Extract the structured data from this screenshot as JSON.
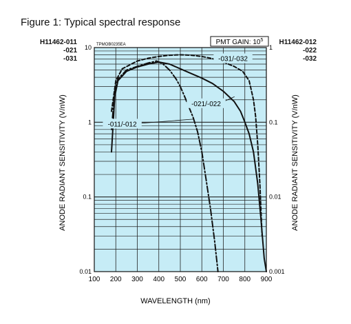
{
  "figure_title": "Figure 1: Typical spectral response",
  "models_left": [
    "H11462-011",
    "-021",
    "-031"
  ],
  "models_right": [
    "H11462-012",
    "-022",
    "-032"
  ],
  "drawing_code": "TPMOB0235EA",
  "gain_badge": {
    "text": "PMT GAIN: 10",
    "sup": "5"
  },
  "chart_data": {
    "type": "line",
    "xlabel": "WAVELENGTH (nm)",
    "ylabel": "ANODE RADIANT SENSITIVITY (V/nW)",
    "ylabel_right": "ANODE RADIANT SENSITIVITY (V/nW)",
    "x_ticks": [
      100,
      200,
      300,
      400,
      500,
      600,
      700,
      800,
      900
    ],
    "xlim": [
      100,
      900
    ],
    "y_scale": "log",
    "ylim": [
      0.01,
      10
    ],
    "y_ticks_left": [
      {
        "value": 0.01,
        "label": "0.01"
      },
      {
        "value": 0.1,
        "label": "0.1"
      },
      {
        "value": 1,
        "label": "1"
      },
      {
        "value": 10,
        "label": "10"
      }
    ],
    "y_ticks_right": [
      {
        "value": 0.01,
        "label": "0.001"
      },
      {
        "value": 0.1,
        "label": "0.01"
      },
      {
        "value": 1,
        "label": "0.1"
      },
      {
        "value": 10,
        "label": "1"
      }
    ],
    "grid": true,
    "background_color": "#c6ecf6",
    "series": [
      {
        "name": "-011/-012",
        "style": "dashdot",
        "x": [
          180,
          195,
          210,
          250,
          300,
          350,
          390,
          420,
          450,
          480,
          500,
          520,
          540,
          560,
          580,
          600,
          620,
          640,
          660,
          675
        ],
        "y": [
          0.8,
          2.6,
          3.8,
          5.0,
          5.6,
          6.2,
          6.6,
          6.0,
          5.0,
          3.8,
          3.0,
          2.2,
          1.6,
          1.15,
          0.75,
          0.4,
          0.17,
          0.07,
          0.025,
          0.01
        ]
      },
      {
        "name": "-021/-022",
        "style": "solid",
        "x": [
          180,
          195,
          210,
          250,
          300,
          350,
          400,
          450,
          500,
          550,
          600,
          650,
          700,
          750,
          780,
          800,
          820,
          840,
          860,
          875,
          890,
          900
        ],
        "y": [
          0.4,
          2.2,
          3.6,
          4.8,
          5.5,
          6.0,
          6.4,
          6.0,
          5.2,
          4.5,
          3.9,
          3.3,
          2.6,
          1.9,
          1.4,
          1.0,
          0.7,
          0.4,
          0.15,
          0.05,
          0.015,
          0.01
        ]
      },
      {
        "name": "-031/-032",
        "style": "dashed",
        "x": [
          180,
          200,
          230,
          300,
          350,
          400,
          450,
          500,
          550,
          600,
          650,
          700,
          750,
          790,
          820,
          840,
          850,
          860,
          870,
          880
        ],
        "y": [
          1.4,
          3.6,
          5.2,
          6.6,
          7.2,
          7.6,
          7.9,
          8.0,
          7.9,
          7.6,
          7.1,
          6.4,
          5.6,
          4.8,
          3.6,
          2.0,
          1.2,
          0.5,
          0.15,
          0.03
        ]
      }
    ]
  }
}
